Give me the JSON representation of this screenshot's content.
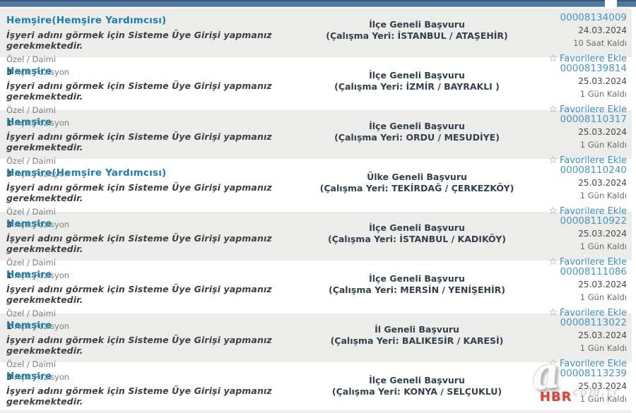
{
  "page": {
    "star_icon": "☆"
  },
  "row_common": {
    "login_notice": "İşyeri adını görmek için Sisteme Üye Girişi yapmanız gerekmektedir.",
    "job_type": "Özel / Daimi",
    "positions_label": "Açık Pozisyon",
    "favorites_label": "Favorilere Ekle"
  },
  "colors": {
    "header_bar": "#4f79a1",
    "title_link": "#1a7fad",
    "id_link": "#4796c4",
    "favorites_link": "#3e92c0",
    "scope_text": "#333f4d",
    "row_alt_background": "#ececea",
    "watermark_red": "#cd362d"
  },
  "watermark": {
    "letter": "a",
    "hbr": "HBR",
    "domain_fragment": "com.tr"
  },
  "rows": [
    {
      "title": "Hemşire(Hemşire Yardımcısı)",
      "positions_count": "5",
      "scope": "İlçe Geneli Başvuru",
      "workplace": "(Çalışma Yeri: İSTANBUL / ATAŞEHİR)",
      "id": "00008134009",
      "date": "24.03.2024",
      "remaining": "10 Saat Kaldı"
    },
    {
      "title": "Hemşire",
      "positions_count": "1",
      "scope": "İlçe Geneli Başvuru",
      "workplace": "(Çalışma Yeri: İZMİR / BAYRAKLI )",
      "id": "00008139814",
      "date": "25.03.2024",
      "remaining": "1 Gün Kaldı"
    },
    {
      "title": "Hemşire",
      "positions_count": "3",
      "scope": "İlçe Geneli Başvuru",
      "workplace": "(Çalışma Yeri: ORDU / MESUDİYE)",
      "id": "00008110317",
      "date": "25.03.2024",
      "remaining": "1 Gün Kaldı"
    },
    {
      "title": "Hemşire(Hemşire Yardımcısı)",
      "positions_count": "3",
      "scope": "Ülke Geneli Başvuru",
      "workplace": "(Çalışma Yeri: TEKİRDAĞ / ÇERKEZKÖY)",
      "id": "00008110240",
      "date": "25.03.2024",
      "remaining": "1 Gün Kaldı"
    },
    {
      "title": "Hemşire",
      "positions_count": "1",
      "scope": "İlçe Geneli Başvuru",
      "workplace": "(Çalışma Yeri: İSTANBUL / KADIKÖY)",
      "id": "00008110922",
      "date": "25.03.2024",
      "remaining": "1 Gün Kaldı"
    },
    {
      "title": "Hemşire",
      "positions_count": "1",
      "scope": "İlçe Geneli Başvuru",
      "workplace": "(Çalışma Yeri: MERSİN / YENİŞEHİR)",
      "id": "00008111086",
      "date": "25.03.2024",
      "remaining": "1 Gün Kaldı"
    },
    {
      "title": "Hemşire",
      "positions_count": "5",
      "scope": "İl Geneli Başvuru",
      "workplace": "(Çalışma Yeri: BALIKESİR / KARESİ)",
      "id": "00008113022",
      "date": "25.03.2024",
      "remaining": "1 Gün Kaldı"
    },
    {
      "title": "Hemşire",
      "positions_count": "2",
      "scope": "İlçe Geneli Başvuru",
      "workplace": "(Çalışma Yeri: KONYA / SELÇUKLU)",
      "id": "00008113239",
      "date": "25.03.2024",
      "remaining": "1 Gün Kaldı"
    }
  ]
}
